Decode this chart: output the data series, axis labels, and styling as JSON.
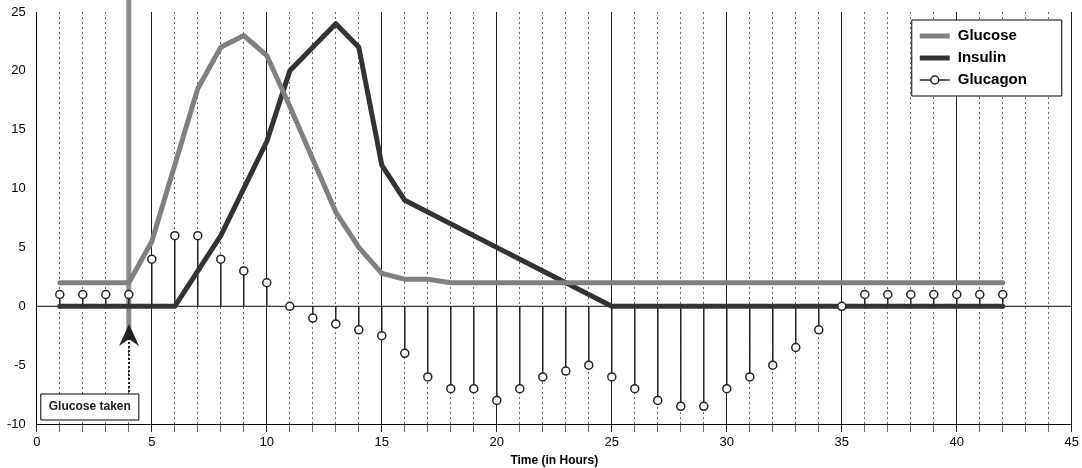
{
  "chart_data": {
    "type": "line",
    "xlabel": "Time (in Hours)",
    "xlim": [
      0,
      45
    ],
    "ylim": [
      -10,
      25
    ],
    "xticks": [
      0,
      {
        "value": 1,
        "label": null
      },
      {
        "value": 2,
        "label": null
      },
      {
        "value": 3,
        "label": null
      },
      {
        "value": 4,
        "label": null
      },
      5,
      {
        "value": 6,
        "label": null
      },
      {
        "value": 7,
        "label": null
      },
      {
        "value": 8,
        "label": null
      },
      {
        "value": 9,
        "label": null
      },
      10,
      {
        "value": 11,
        "label": null
      },
      {
        "value": 12,
        "label": null
      },
      {
        "value": 13,
        "label": null
      },
      {
        "value": 14,
        "label": null
      },
      15,
      {
        "value": 16,
        "label": null
      },
      {
        "value": 17,
        "label": null
      },
      {
        "value": 18,
        "label": null
      },
      {
        "value": 19,
        "label": null
      },
      20,
      {
        "value": 21,
        "label": null
      },
      {
        "value": 22,
        "label": null
      },
      {
        "value": 23,
        "label": null
      },
      {
        "value": 24,
        "label": null
      },
      25,
      {
        "value": 26,
        "label": null
      },
      {
        "value": 27,
        "label": null
      },
      {
        "value": 28,
        "label": null
      },
      {
        "value": 29,
        "label": null
      },
      30,
      {
        "value": 31,
        "label": null
      },
      {
        "value": 32,
        "label": null
      },
      {
        "value": 33,
        "label": null
      },
      {
        "value": 34,
        "label": null
      },
      35,
      {
        "value": 36,
        "label": null
      },
      {
        "value": 37,
        "label": null
      },
      {
        "value": 38,
        "label": null
      },
      {
        "value": 39,
        "label": null
      },
      40,
      {
        "value": 41,
        "label": null
      },
      {
        "value": 42,
        "label": null
      },
      {
        "value": 43,
        "label": null
      },
      {
        "value": 44,
        "label": null
      },
      45
    ],
    "yticks": [
      -10,
      -5,
      0,
      5,
      10,
      15,
      20,
      25
    ],
    "grid": "x",
    "legend": "top right",
    "series": [
      {
        "name": "Glucose",
        "color": "#808080",
        "x": [
          1,
          4,
          5,
          6,
          7,
          8,
          9,
          10,
          11,
          12,
          13,
          14,
          15,
          16,
          17,
          18,
          42
        ],
        "values": [
          2,
          2,
          5.5,
          12,
          18.5,
          22,
          23,
          21.3,
          17,
          12.5,
          8,
          5,
          2.8,
          2.3,
          2.3,
          2,
          2
        ]
      },
      {
        "name": "Insulin",
        "color": "#333333",
        "x": [
          1,
          6,
          8,
          10,
          11,
          13,
          14,
          15,
          16,
          25,
          42
        ],
        "values": [
          0,
          0,
          6,
          14,
          20,
          24,
          22,
          12,
          9,
          0,
          0
        ]
      },
      {
        "name": "Glucagon",
        "type": "lollipop",
        "color": "#222222",
        "x": [
          1,
          2,
          3,
          4,
          5,
          6,
          7,
          8,
          9,
          10,
          11,
          12,
          13,
          14,
          15,
          16,
          17,
          18,
          19,
          20,
          21,
          22,
          23,
          24,
          25,
          26,
          27,
          28,
          29,
          30,
          31,
          32,
          33,
          34,
          35,
          36,
          37,
          38,
          39,
          40,
          41,
          42
        ],
        "values": [
          1,
          1,
          1,
          1,
          4,
          6,
          6,
          4,
          3,
          2,
          0,
          -1,
          -1.5,
          -2,
          -2.5,
          -4,
          -6,
          -7,
          -7,
          -8,
          -7,
          -6,
          -5.5,
          -5,
          -6,
          -7,
          -8,
          -8.5,
          -8.5,
          -7,
          -6,
          -5,
          -3.5,
          -2,
          0,
          1,
          1,
          1,
          1,
          1,
          1,
          1
        ]
      }
    ],
    "ref_lines": [
      {
        "axis": "x",
        "value": 4,
        "color": "#8c8c8c"
      },
      {
        "axis": "y",
        "value": 0,
        "color": "#000000"
      }
    ],
    "annotations": [
      "Glucose taken"
    ]
  }
}
